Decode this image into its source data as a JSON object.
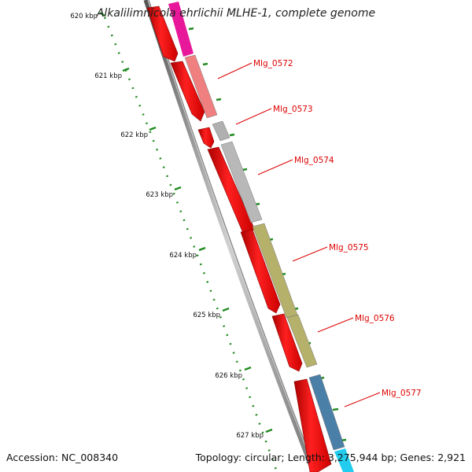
{
  "title": "Alkalilimnicola ehrlichii MLHE-1, complete genome",
  "accession": "Accession: NC_008340",
  "summary": "Topology: circular; Length: 3,275,944 bp; Genes: 2,921",
  "ticks": [
    "620 kbp",
    "621 kbp",
    "622 kbp",
    "623 kbp",
    "624 kbp",
    "625 kbp",
    "626 kbp",
    "627 kbp"
  ],
  "genes": [
    {
      "name": "Mlg_0572",
      "color": "#f08080"
    },
    {
      "name": "Mlg_0573",
      "color": "#b0b0b0"
    },
    {
      "name": "Mlg_0574",
      "color": "#b8b8b8"
    },
    {
      "name": "Mlg_0575",
      "color": "#b5b06a"
    },
    {
      "name": "Mlg_0576",
      "color": "#b5b06a"
    },
    {
      "name": "Mlg_0577",
      "color": "#4a7fa8"
    }
  ],
  "colors": {
    "cds": "#ff0000",
    "backbone": "#808080",
    "tick": "#228b22",
    "label": "#dd0000",
    "magenta": "#e8189a",
    "cyan": "#22ccee"
  }
}
